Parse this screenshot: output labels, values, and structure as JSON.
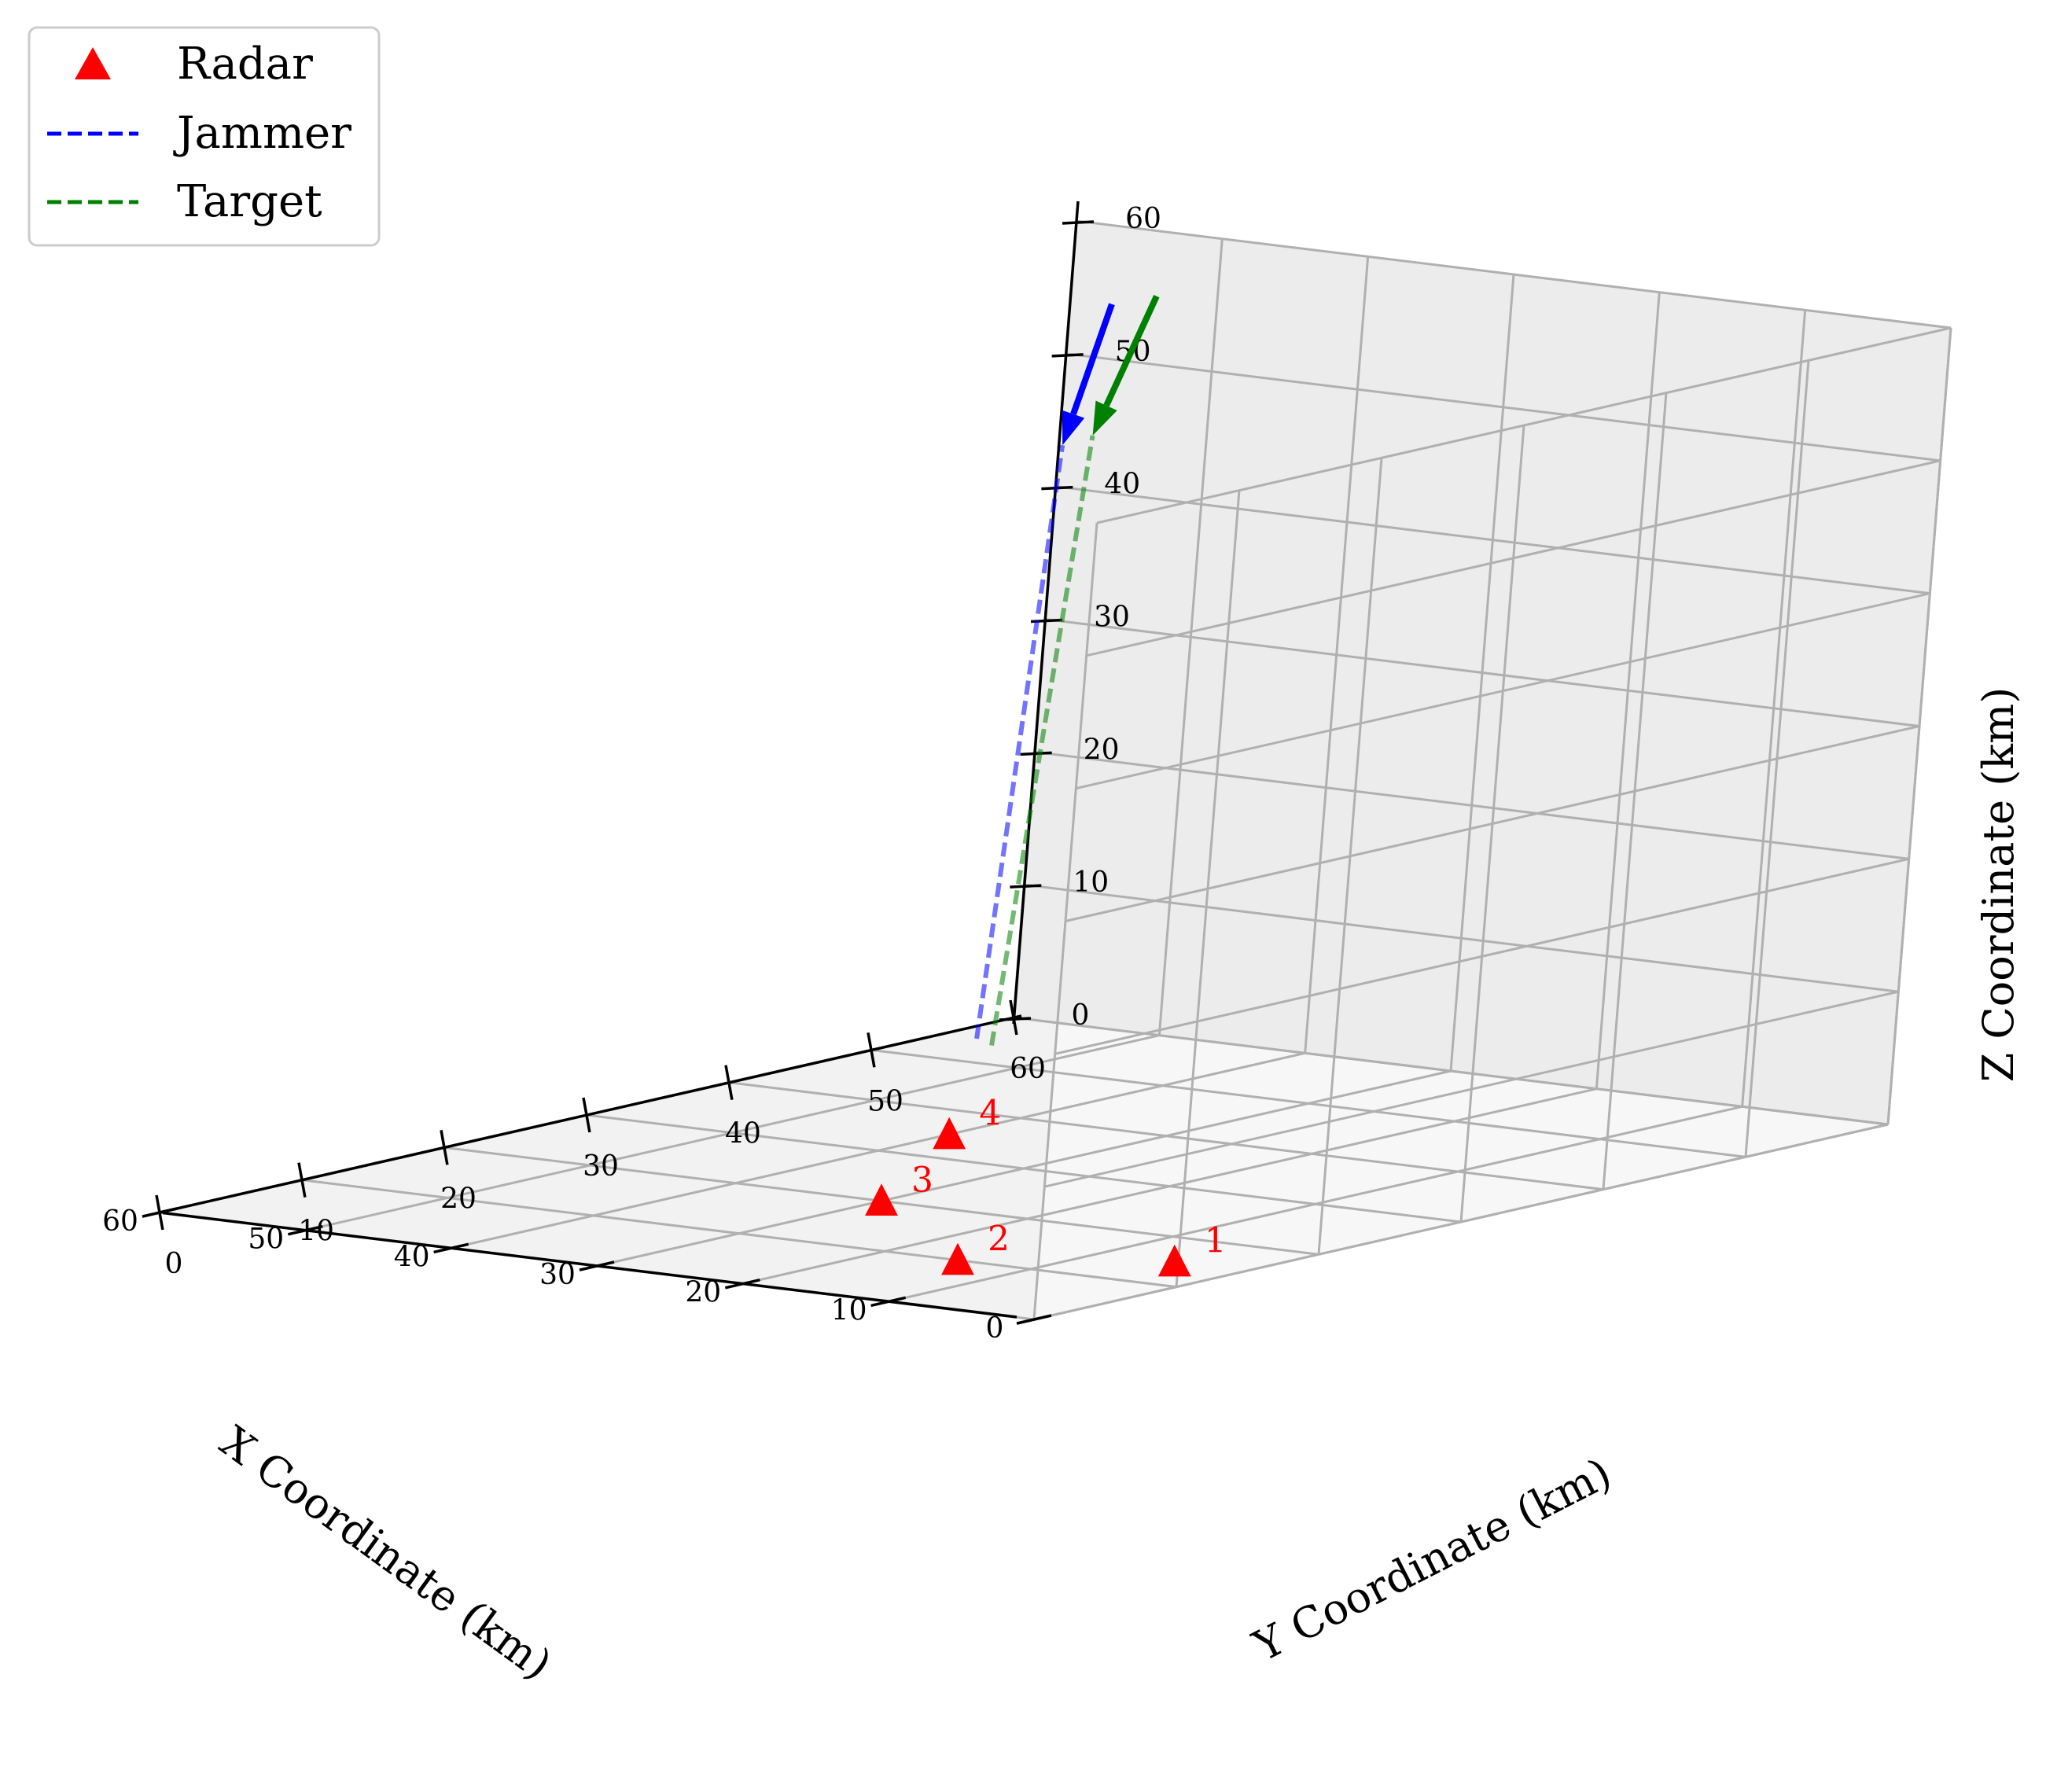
{
  "chart_data": {
    "type": "scatter",
    "projection": "3d",
    "xlabel": "X Coordinate (km)",
    "ylabel": "Y Coordinate (km)",
    "zlabel": "Z Coordinate (km)",
    "xlim": [
      0,
      60
    ],
    "ylim": [
      0,
      60
    ],
    "zlim": [
      0,
      60
    ],
    "xticks": [
      "0",
      "10",
      "20",
      "30",
      "40",
      "50",
      "60"
    ],
    "yticks": [
      "0",
      "10",
      "20",
      "30",
      "40",
      "50",
      "60"
    ],
    "zticks": [
      "0",
      "10",
      "20",
      "30",
      "40",
      "50",
      "60"
    ],
    "grid": true,
    "legend": {
      "placement": "top-left",
      "entries": [
        {
          "label": "Radar",
          "marker": "triangle",
          "color": "#ff0000"
        },
        {
          "label": "Jammer",
          "style": "dashed",
          "color": "#0000ff"
        },
        {
          "label": "Target",
          "style": "dashed",
          "color": "#008000"
        }
      ]
    },
    "radars": [
      {
        "label": "1",
        "x": 5,
        "y": 15,
        "z": 0
      },
      {
        "label": "2",
        "x": 15,
        "y": 10,
        "z": 0
      },
      {
        "label": "3",
        "x": 30,
        "y": 20,
        "z": 0
      },
      {
        "label": "4",
        "x": 40,
        "y": 35,
        "z": 0
      }
    ],
    "jammer": {
      "path": [
        [
          32,
          28,
          10
        ],
        [
          55,
          55,
          45
        ]
      ],
      "arrow_head": [
        55,
        55,
        45
      ],
      "arrow_tail": [
        60,
        63,
        53
      ],
      "color": "#0000ff"
    },
    "target": {
      "path": [
        [
          30,
          27,
          10
        ],
        [
          53,
          55,
          46
        ]
      ],
      "arrow_head": [
        53,
        55,
        46
      ],
      "arrow_tail": [
        57,
        63,
        54
      ],
      "color": "#008000"
    }
  }
}
